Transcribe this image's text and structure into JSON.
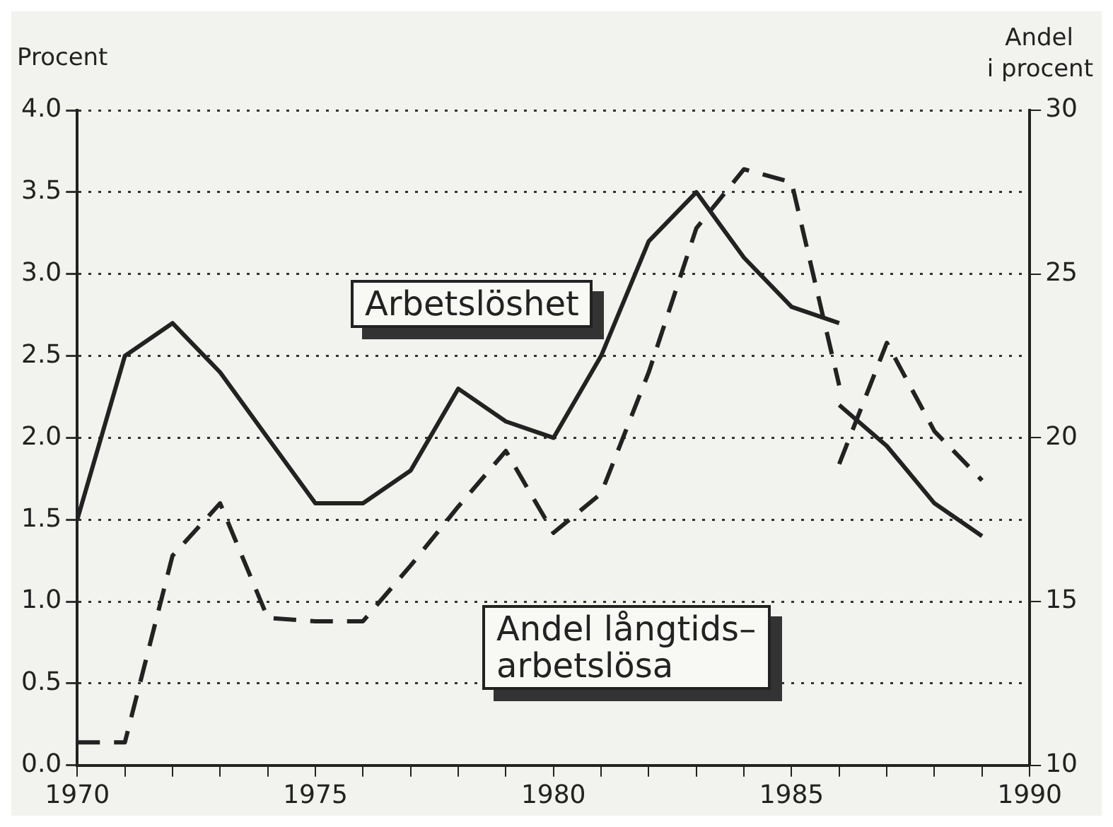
{
  "chart_data": {
    "type": "line",
    "ylabel": "Procent",
    "y2label": "Andel\ni procent",
    "annotations": [
      "Arbetslöshet",
      "Andel långtids–\narbetslösa"
    ],
    "series": [
      {
        "color": "#222222",
        "line_style": "solid",
        "x": [
          1970,
          1971,
          1972,
          1973,
          1974,
          1975,
          1976,
          1977,
          1978,
          1979,
          1980,
          1981,
          1982,
          1983,
          1984,
          1985,
          1986
        ],
        "values": [
          1.5,
          2.5,
          2.7,
          2.4,
          2.0,
          1.6,
          1.6,
          1.8,
          2.3,
          2.1,
          2.0,
          2.5,
          3.2,
          3.5,
          3.1,
          2.8,
          2.7
        ]
      },
      {
        "color": "#222222",
        "line_style": "solid",
        "x": [
          1986,
          1987,
          1988,
          1989
        ],
        "values": [
          2.2,
          1.95,
          1.6,
          1.4
        ]
      },
      {
        "axis": "y2",
        "color": "#222222",
        "line_style": "dashed",
        "x": [
          1970,
          1971,
          1972,
          1973,
          1974,
          1975,
          1976,
          1977,
          1978,
          1979,
          1980,
          1981,
          1982,
          1983,
          1984,
          1985,
          1986
        ],
        "values": [
          10.7,
          10.7,
          16.4,
          18.0,
          14.5,
          14.4,
          14.4,
          16.1,
          17.9,
          19.6,
          17.1,
          18.3,
          22.0,
          26.4,
          28.2,
          27.8,
          21.6
        ]
      },
      {
        "axis": "y2",
        "color": "#222222",
        "line_style": "dashed",
        "x": [
          1986,
          1987,
          1988,
          1989
        ],
        "values": [
          19.2,
          22.9,
          20.2,
          18.7
        ]
      }
    ],
    "xlim": [
      1970,
      1990
    ],
    "xticks": [
      1970,
      {
        "value": 1971,
        "label": null
      },
      {
        "value": 1972,
        "label": null
      },
      {
        "value": 1973,
        "label": null
      },
      {
        "value": 1974,
        "label": null
      },
      1975,
      {
        "value": 1976,
        "label": null
      },
      {
        "value": 1977,
        "label": null
      },
      {
        "value": 1978,
        "label": null
      },
      {
        "value": 1979,
        "label": null
      },
      1980,
      {
        "value": 1981,
        "label": null
      },
      {
        "value": 1982,
        "label": null
      },
      {
        "value": 1983,
        "label": null
      },
      {
        "value": 1984,
        "label": null
      },
      1985,
      {
        "value": 1986,
        "label": null
      },
      {
        "value": 1987,
        "label": null
      },
      {
        "value": 1988,
        "label": null
      },
      {
        "value": 1989,
        "label": null
      },
      1990
    ],
    "ylim": [
      0,
      4
    ],
    "yticks": [
      {
        "value": 0,
        "label": "0.0"
      },
      0.5,
      {
        "value": 1,
        "label": "1.0"
      },
      1.5,
      {
        "value": 2,
        "label": "2.0"
      },
      2.5,
      {
        "value": 3,
        "label": "3.0"
      },
      3.5,
      {
        "value": 4,
        "label": "4.0"
      }
    ],
    "y2lim": [
      10,
      30
    ],
    "y2ticks": [
      10,
      15,
      20,
      25,
      30
    ],
    "grid": "y",
    "legend": false,
    "marker": "none"
  }
}
